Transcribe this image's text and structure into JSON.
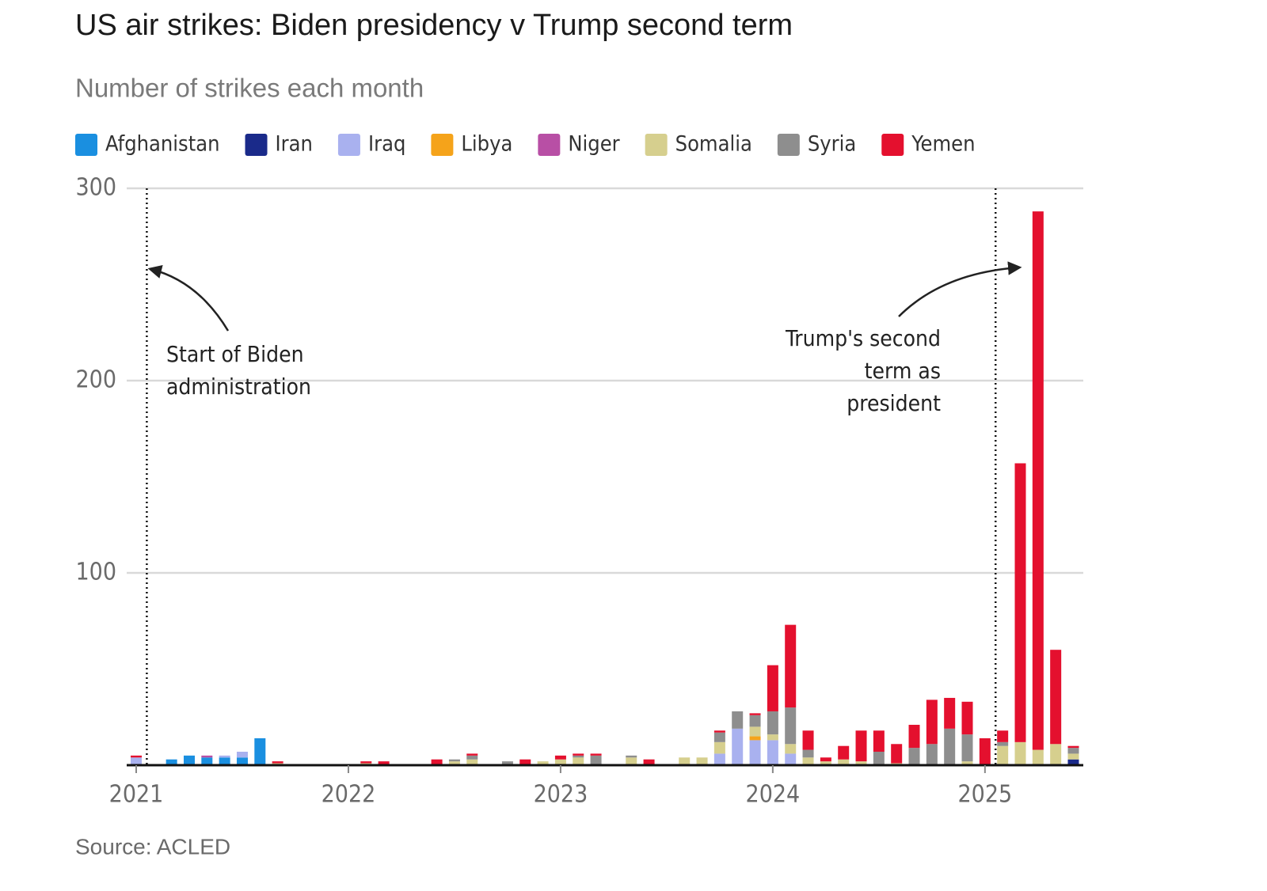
{
  "chart_data": {
    "type": "stacked_bar",
    "title": "US air strikes: Biden presidency v Trump second term",
    "subtitle": "Number of strikes each month",
    "source": "Source: ACLED",
    "categories": [
      "2021",
      null,
      null,
      null,
      null,
      null,
      null,
      null,
      null,
      null,
      null,
      null,
      "2022",
      null,
      null,
      null,
      null,
      null,
      null,
      null,
      null,
      null,
      null,
      null,
      "2023",
      null,
      null,
      null,
      null,
      null,
      null,
      null,
      null,
      null,
      null,
      null,
      "2024",
      null,
      null,
      null,
      null,
      null,
      null,
      null,
      null,
      null,
      null,
      null,
      "2025",
      null,
      null,
      null,
      null,
      null
    ],
    "ylim": [
      0,
      300
    ],
    "yticks": [
      100,
      200,
      300
    ],
    "grid": true,
    "legend": "top-left",
    "annotations": [
      {
        "lines": [
          "Start of Biden",
          "administration"
        ]
      },
      {
        "lines": [
          "Trump's second",
          "term as",
          "president"
        ]
      }
    ],
    "series": [
      {
        "name": "Afghanistan",
        "color": "#1a8fe0",
        "values": [
          0,
          0,
          3,
          5,
          4,
          4,
          4,
          14,
          0,
          0,
          0,
          0,
          0,
          0,
          0,
          0,
          0,
          0,
          0,
          0,
          0,
          0,
          0,
          0,
          0,
          0,
          0,
          0,
          0,
          0,
          0,
          0,
          0,
          0,
          0,
          0,
          0,
          0,
          0,
          0,
          0,
          0,
          0,
          0,
          0,
          0,
          0,
          0,
          0,
          0,
          0,
          0,
          0,
          0
        ]
      },
      {
        "name": "Iran",
        "color": "#1a2a8a",
        "values": [
          0,
          0,
          0,
          0,
          0,
          0,
          0,
          0,
          0,
          0,
          0,
          0,
          0,
          0,
          0,
          0,
          0,
          0,
          0,
          0,
          0,
          0,
          0,
          0,
          0,
          0,
          0,
          0,
          0,
          0,
          0,
          0,
          0,
          0,
          0,
          0,
          0,
          0,
          0,
          0,
          0,
          0,
          0,
          0,
          0,
          0,
          0,
          0,
          0,
          0,
          0,
          0,
          0,
          3
        ]
      },
      {
        "name": "Iraq",
        "color": "#a9b1ef",
        "values": [
          4,
          0,
          0,
          0,
          0,
          1,
          3,
          0,
          0,
          0,
          0,
          0,
          0,
          0,
          0,
          0,
          0,
          0,
          0,
          0,
          0,
          0,
          0,
          0,
          0,
          0,
          0,
          0,
          0,
          0,
          0,
          0,
          0,
          6,
          19,
          13,
          13,
          6,
          0,
          0,
          0,
          0,
          0,
          0,
          0,
          0,
          0,
          0,
          0,
          0,
          0,
          0,
          0,
          0
        ]
      },
      {
        "name": "Libya",
        "color": "#f5a31a",
        "values": [
          0,
          0,
          0,
          0,
          0,
          0,
          0,
          0,
          0,
          0,
          0,
          0,
          0,
          0,
          0,
          0,
          0,
          0,
          0,
          0,
          0,
          0,
          0,
          0,
          0,
          0,
          0,
          0,
          0,
          0,
          0,
          0,
          0,
          0,
          0,
          2,
          0,
          0,
          0,
          0,
          0,
          0,
          0,
          0,
          0,
          0,
          0,
          0,
          0,
          0,
          0,
          0,
          0,
          0
        ]
      },
      {
        "name": "Niger",
        "color": "#b84fa5",
        "values": [
          0,
          0,
          0,
          0,
          1,
          0,
          0,
          0,
          0,
          0,
          0,
          0,
          0,
          0,
          0,
          0,
          0,
          0,
          0,
          0,
          0,
          0,
          0,
          0,
          0,
          0,
          0,
          0,
          0,
          0,
          0,
          0,
          0,
          0,
          0,
          0,
          0,
          0,
          0,
          0,
          0,
          0,
          0,
          0,
          0,
          0,
          0,
          0,
          0,
          0,
          0,
          0,
          0,
          0
        ]
      },
      {
        "name": "Somalia",
        "color": "#d6cf8e",
        "values": [
          0,
          0,
          0,
          0,
          0,
          0,
          0,
          0,
          1,
          0,
          0,
          0,
          0,
          1,
          0,
          0,
          0,
          0,
          2,
          3,
          0,
          0,
          0,
          2,
          3,
          4,
          0,
          0,
          4,
          0,
          0,
          4,
          4,
          6,
          0,
          5,
          3,
          5,
          4,
          2,
          3,
          2,
          0,
          1,
          0,
          0,
          0,
          2,
          0,
          10,
          12,
          8,
          11,
          3
        ]
      },
      {
        "name": "Syria",
        "color": "#8e8e8e",
        "values": [
          0,
          0,
          0,
          0,
          0,
          0,
          0,
          0,
          0,
          0,
          0,
          0,
          0,
          0,
          0,
          0,
          0,
          0,
          1,
          2,
          0,
          2,
          0,
          0,
          0,
          1,
          5,
          0,
          1,
          0,
          0,
          0,
          0,
          5,
          9,
          6,
          12,
          19,
          4,
          0,
          0,
          0,
          7,
          0,
          9,
          11,
          19,
          14,
          0,
          2,
          0,
          0,
          0,
          3
        ]
      },
      {
        "name": "Yemen",
        "color": "#e4102e",
        "values": [
          1,
          0,
          0,
          0,
          0,
          0,
          0,
          0,
          1,
          0,
          0,
          0,
          0,
          1,
          2,
          0,
          0,
          3,
          0,
          1,
          0,
          0,
          3,
          0,
          2,
          1,
          1,
          0,
          0,
          3,
          0,
          0,
          0,
          1,
          0,
          1,
          24,
          43,
          10,
          2,
          7,
          16,
          11,
          10,
          12,
          23,
          16,
          17,
          14,
          6,
          145,
          280,
          49,
          1
        ]
      }
    ]
  }
}
